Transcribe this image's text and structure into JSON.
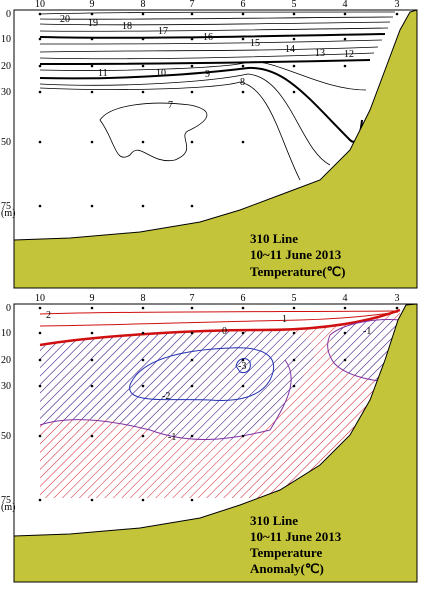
{
  "chart_data": [
    {
      "type": "contour",
      "x_label_text": "",
      "station_labels": [
        "10",
        "9",
        "8",
        "7",
        "6",
        "5",
        "4",
        "3"
      ],
      "depth_ticks": [
        0,
        10,
        20,
        30,
        50,
        75
      ],
      "depth_unit": "(m)",
      "title_lines": [
        "310 Line",
        "10~11 June 2013",
        "Temperature(℃)"
      ],
      "contour_levels": [
        "20",
        "19",
        "18",
        "17",
        "16",
        "15",
        "14",
        "13",
        "12",
        "11",
        "10",
        "9",
        "8",
        "7"
      ],
      "colors": {
        "land": "#c4c43a",
        "line": "#000000"
      }
    },
    {
      "type": "contour",
      "station_labels": [
        "10",
        "9",
        "8",
        "7",
        "6",
        "5",
        "4",
        "3"
      ],
      "depth_ticks": [
        0,
        10,
        20,
        30,
        50,
        75
      ],
      "depth_unit": "(m)",
      "title_lines": [
        "310 Line",
        "10~11 June 2013",
        "Temperature",
        "Anomaly(℃)"
      ],
      "contour_levels": [
        "2",
        "1",
        "0",
        "-1",
        "-2",
        "-3",
        "-3",
        "-1"
      ],
      "colors": {
        "land": "#c4c43a",
        "positive": "#d01010",
        "negative": "#2030b0",
        "mid": "#8030a0"
      }
    }
  ]
}
